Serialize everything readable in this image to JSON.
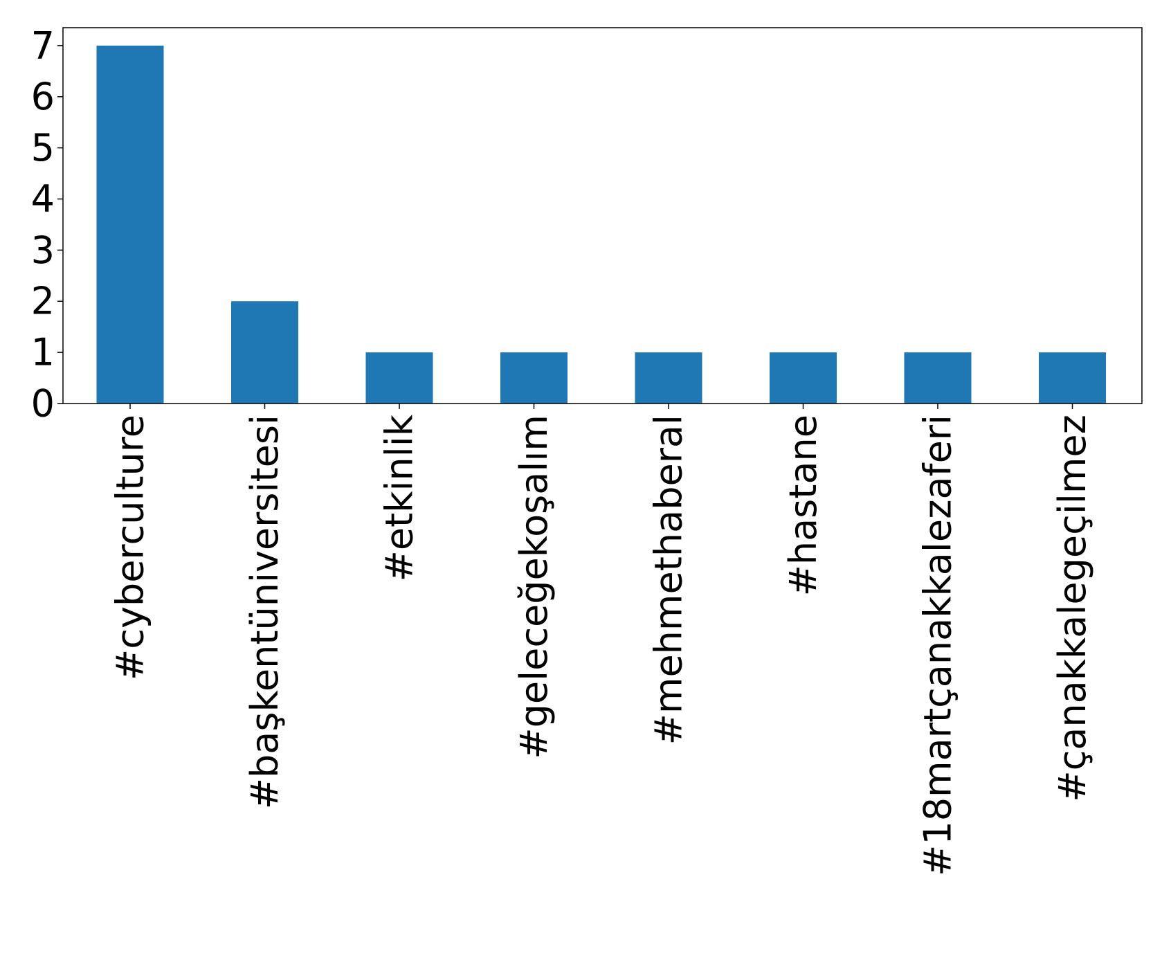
{
  "chart_data": {
    "type": "bar",
    "categories": [
      "#cyberculture",
      "#başkentüniversitesi",
      "#etkinlik",
      "#geleceğekoşalım",
      "#mehmethaberal",
      "#hastane",
      "#18martçanakkalezaferi",
      "#çanakkalegeçilmez"
    ],
    "values": [
      7,
      2,
      1,
      1,
      1,
      1,
      1,
      1
    ],
    "title": "",
    "xlabel": "",
    "ylabel": "",
    "ylim": [
      0,
      7.35
    ],
    "yticks": [
      "0",
      "1",
      "2",
      "3",
      "4",
      "5",
      "6",
      "7"
    ],
    "grid": false,
    "legend": "none",
    "bar_color": "#1f77b4",
    "x_tick_rotation": "vertical"
  }
}
